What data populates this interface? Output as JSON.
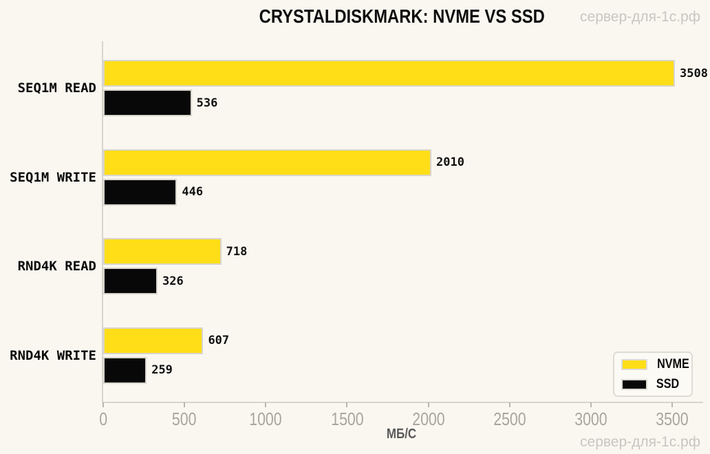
{
  "chart_data": {
    "type": "bar",
    "orientation": "horizontal",
    "title": "CRYSTALDISKMARK: NVME VS SSD",
    "categories": [
      "SEQ1M READ",
      "SEQ1M WRITE",
      "RND4K READ",
      "RND4K WRITE"
    ],
    "series": [
      {
        "name": "NVME",
        "color": "#FFDE17",
        "values": [
          3508,
          2010,
          718,
          607
        ]
      },
      {
        "name": "SSD",
        "color": "#080808",
        "values": [
          536,
          446,
          326,
          259
        ]
      }
    ],
    "xlabel": "МБ/С",
    "xticks": [
      0,
      500,
      1000,
      1500,
      2000,
      2500,
      3000,
      3500
    ],
    "xlim": [
      0,
      3690
    ],
    "legend_position": "lower right",
    "grid": false
  },
  "watermark": {
    "text": "сервер-для-1с.рф"
  },
  "colors": {
    "background": "#FAF7F0",
    "axis": "#D8D5CC",
    "tick_label": "#A8A59E",
    "value_label": "#111111",
    "watermark": "#C8C6C0",
    "xlabel": "#5A5A5A"
  }
}
